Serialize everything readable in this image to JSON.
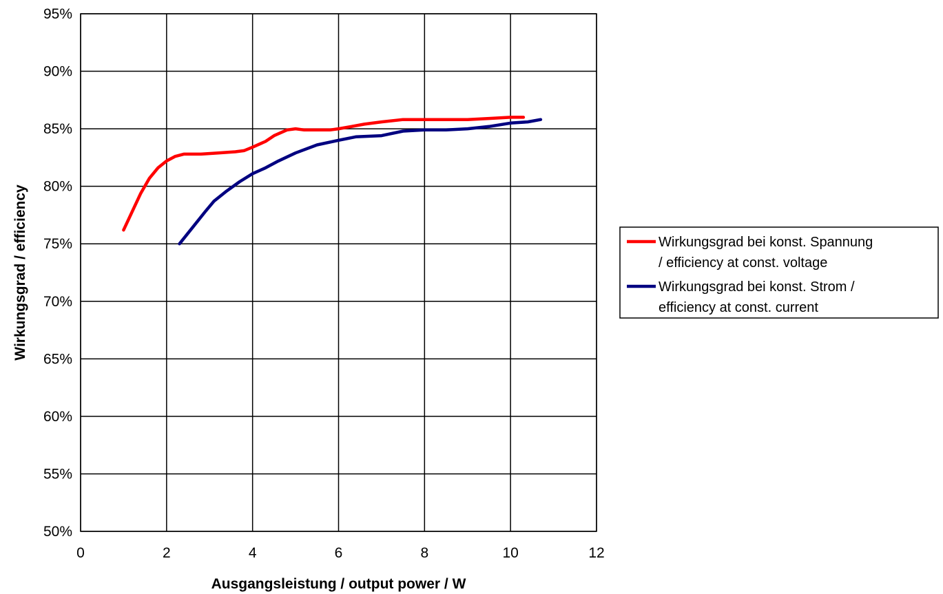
{
  "chart_data": {
    "type": "line",
    "xlabel": "Ausgangsleistung / output power / W",
    "ylabel": "Wirkungsgrad / efficiency",
    "xlim": [
      0,
      12
    ],
    "ylim": [
      50,
      95
    ],
    "xticks": [
      0,
      2,
      4,
      6,
      8,
      10,
      12
    ],
    "xtick_labels": [
      "0",
      "2",
      "4",
      "6",
      "8",
      "10",
      "12"
    ],
    "yticks": [
      50,
      55,
      60,
      65,
      70,
      75,
      80,
      85,
      90,
      95
    ],
    "ytick_labels": [
      "50%",
      "55%",
      "60%",
      "65%",
      "70%",
      "75%",
      "80%",
      "85%",
      "90%",
      "95%"
    ],
    "grid": true,
    "legend_position": "right",
    "series": [
      {
        "name": "Wirkungsgrad bei konst. Spannung / efficiency at const. voltage",
        "legend_lines": [
          "Wirkungsgrad bei konst. Spannung",
          "/ efficiency at const. voltage"
        ],
        "color": "#ff0000",
        "x": [
          1.0,
          1.2,
          1.4,
          1.6,
          1.8,
          2.0,
          2.2,
          2.4,
          2.8,
          3.2,
          3.6,
          3.8,
          4.0,
          4.3,
          4.5,
          4.8,
          5.0,
          5.2,
          5.5,
          5.8,
          6.0,
          6.3,
          6.6,
          7.0,
          7.5,
          8.0,
          8.5,
          9.0,
          9.5,
          10.0,
          10.3
        ],
        "y": [
          76.2,
          77.8,
          79.4,
          80.7,
          81.6,
          82.2,
          82.6,
          82.8,
          82.8,
          82.9,
          83.0,
          83.1,
          83.4,
          83.9,
          84.4,
          84.9,
          85.0,
          84.9,
          84.9,
          84.9,
          85.0,
          85.2,
          85.4,
          85.6,
          85.8,
          85.8,
          85.8,
          85.8,
          85.9,
          86.0,
          86.0
        ]
      },
      {
        "name": "Wirkungsgrad bei konst. Strom / efficiency at const. current",
        "legend_lines": [
          "Wirkungsgrad bei konst. Strom /",
          "efficiency at const. current"
        ],
        "color": "#000080",
        "x": [
          2.3,
          2.6,
          2.9,
          3.1,
          3.4,
          3.7,
          4.0,
          4.3,
          4.6,
          5.0,
          5.5,
          6.0,
          6.4,
          7.0,
          7.5,
          8.0,
          8.5,
          9.0,
          9.5,
          10.0,
          10.4,
          10.7
        ],
        "y": [
          75.0,
          76.4,
          77.8,
          78.7,
          79.6,
          80.4,
          81.1,
          81.6,
          82.2,
          82.9,
          83.6,
          84.0,
          84.3,
          84.4,
          84.8,
          84.9,
          84.9,
          85.0,
          85.2,
          85.5,
          85.6,
          85.8
        ]
      }
    ]
  }
}
